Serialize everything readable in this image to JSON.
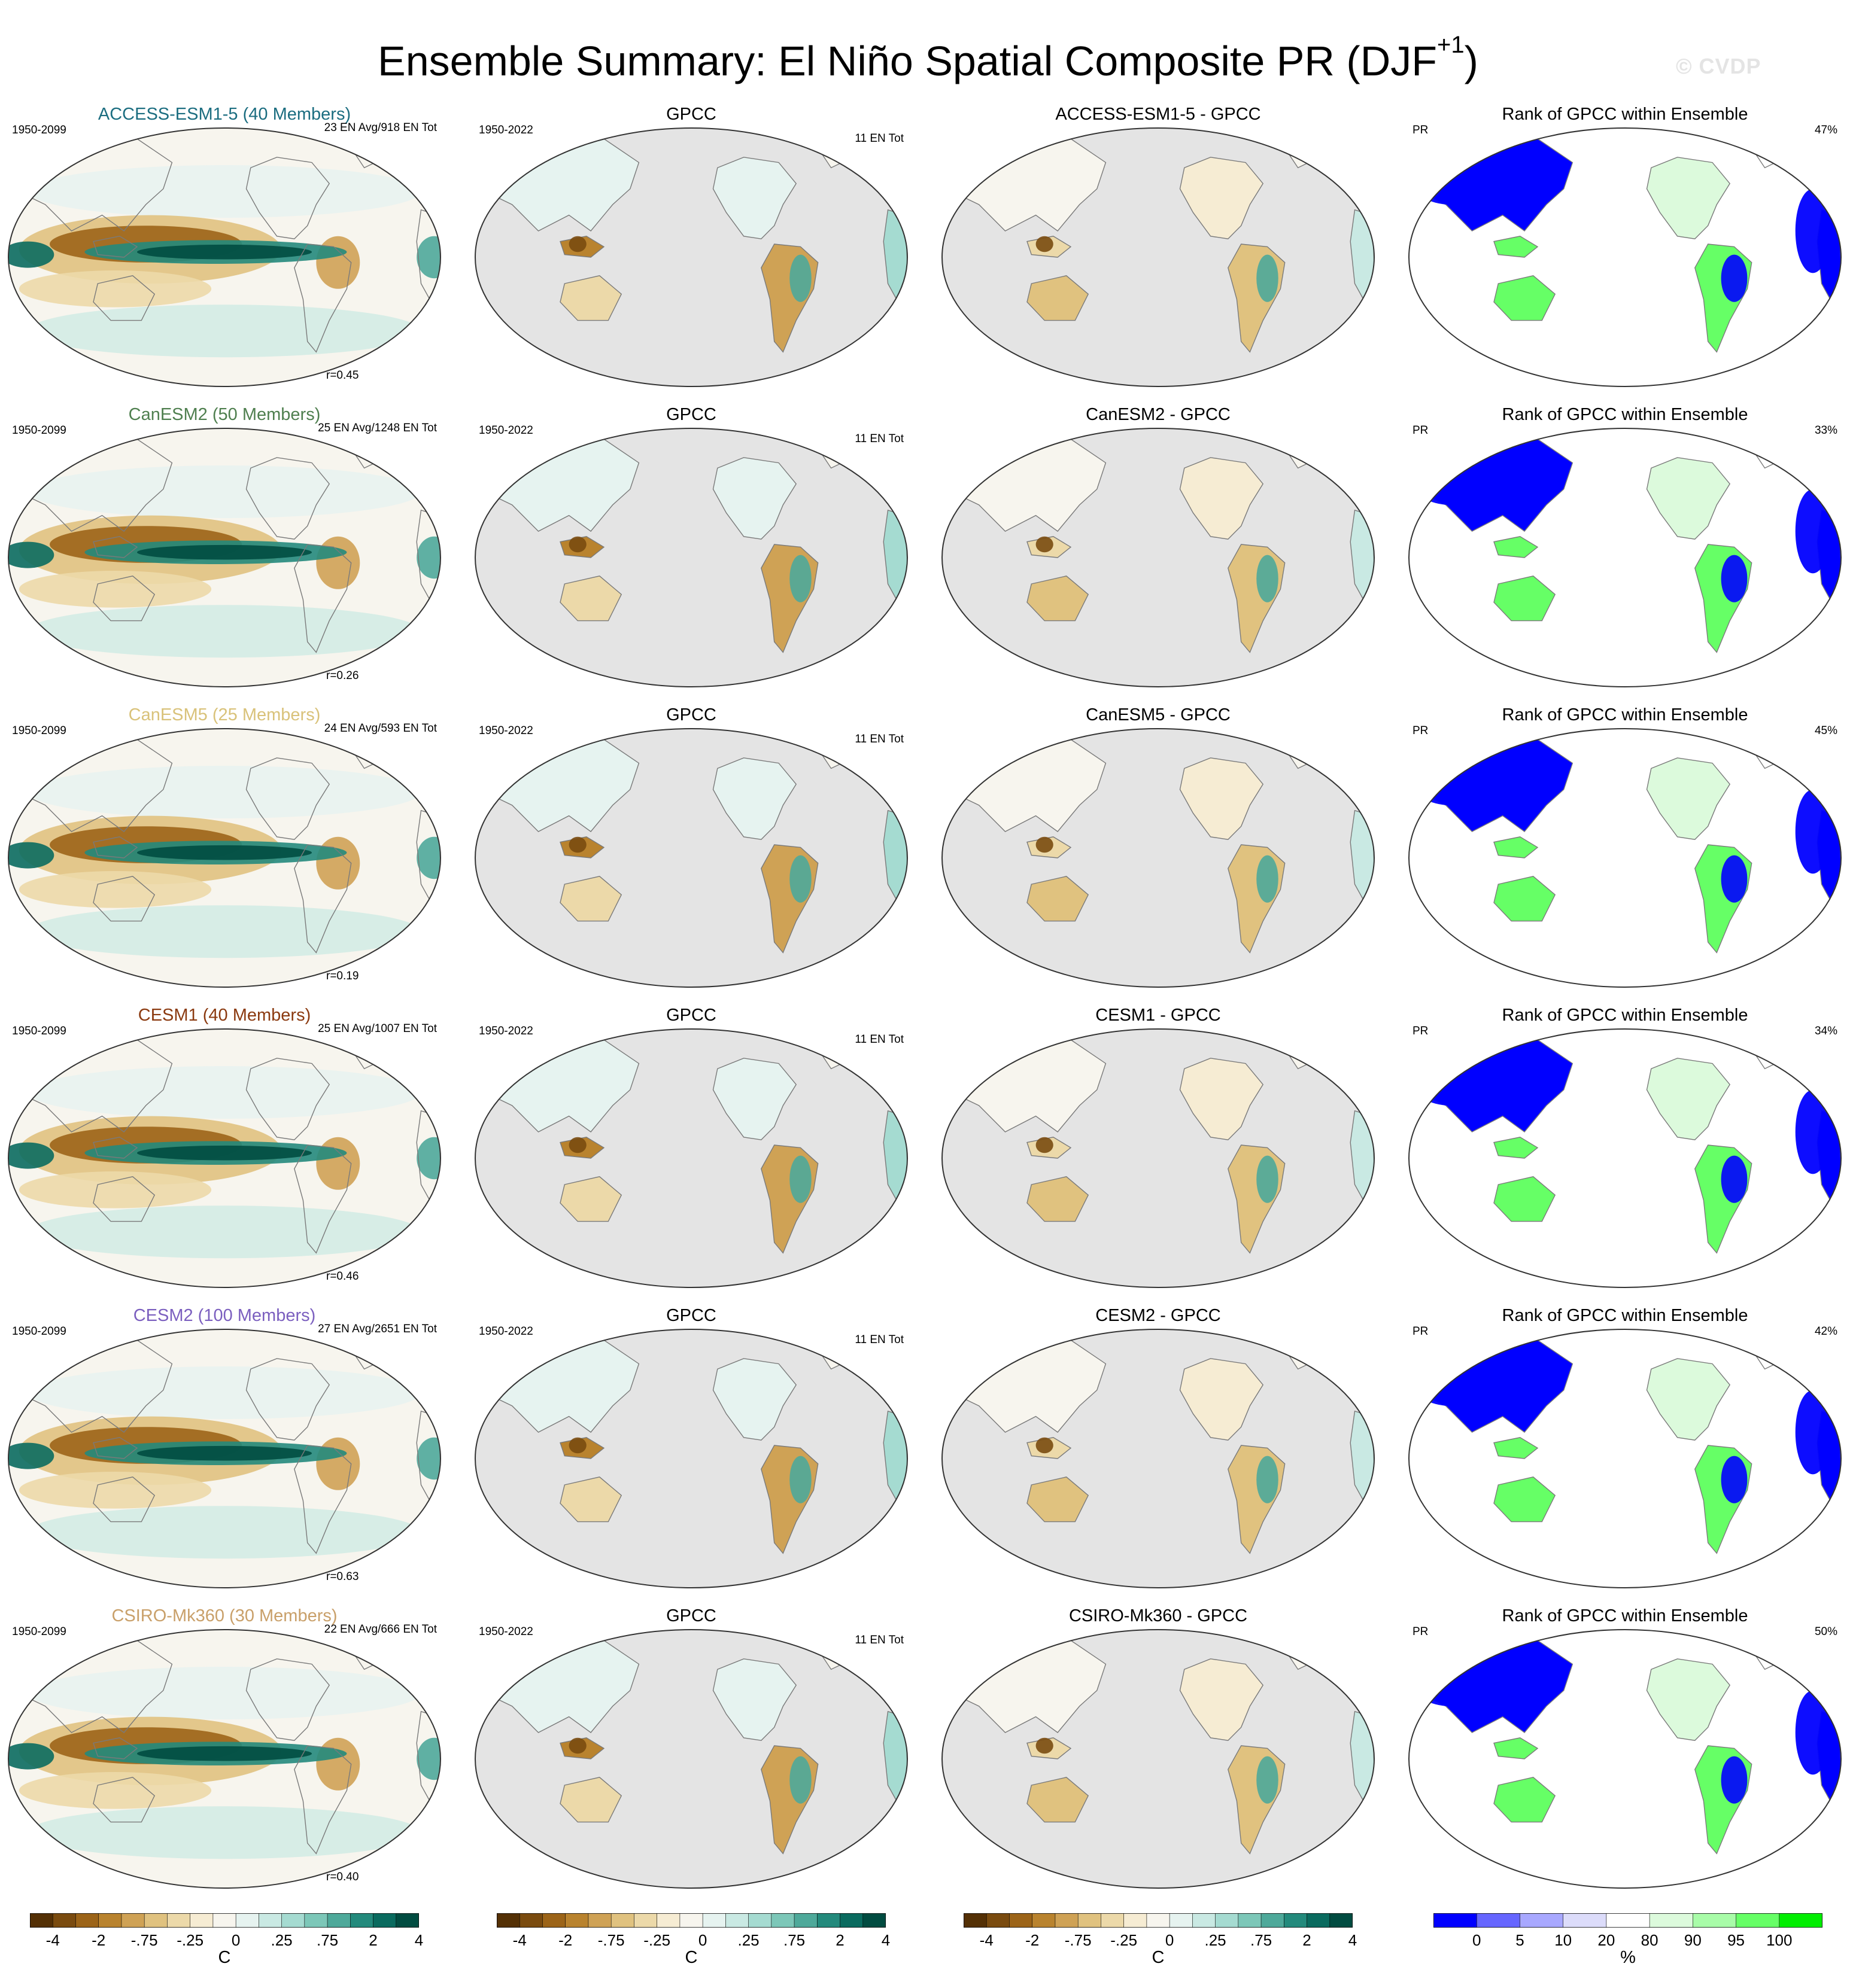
{
  "title": {
    "main": "Ensemble Summary: El Niño Spatial Composite PR (DJF",
    "superscript": "+1",
    "close": ")"
  },
  "watermark": "© CVDP",
  "colors": {
    "brown_teal": [
      "#543005",
      "#7a4b0f",
      "#9c6418",
      "#b9832e",
      "#cfa255",
      "#e0c27f",
      "#ecd9a9",
      "#f6ecd3",
      "#f7f5ee",
      "#e6f3f0",
      "#c9e9e3",
      "#a5dbd1",
      "#7cc7b8",
      "#4ea99a",
      "#238a7c",
      "#0a6b5f",
      "#014c41"
    ],
    "rank": [
      "#0000ff",
      "#6666ff",
      "#a8a8ff",
      "#dcdcfa",
      "#ffffff",
      "#dcfadc",
      "#a8fca8",
      "#66ff66",
      "#00ee00"
    ],
    "ocean_obs": "#e4e4e4"
  },
  "rows": [
    {
      "model": "ACCESS-ESM1-5 (40 Members)",
      "model_color": "#1b6d80",
      "period": "1950-2099",
      "ens": "23 EN Avg/918 EN Tot",
      "r": "r=0.45",
      "gpcc_title": "GPCC",
      "obs_period": "1950-2022",
      "obs_count": "11 EN Tot",
      "diff_title": "ACCESS-ESM1-5 - GPCC",
      "rank_title": "Rank of GPCC within Ensemble",
      "rank_var": "PR",
      "rank_pct": "47%"
    },
    {
      "model": "CanESM2 (50 Members)",
      "model_color": "#4f7f4f",
      "period": "1950-2099",
      "ens": "25 EN Avg/1248 EN Tot",
      "r": "r=0.26",
      "gpcc_title": "GPCC",
      "obs_period": "1950-2022",
      "obs_count": "11 EN Tot",
      "diff_title": "CanESM2 - GPCC",
      "rank_title": "Rank of GPCC within Ensemble",
      "rank_var": "PR",
      "rank_pct": "33%"
    },
    {
      "model": "CanESM5 (25 Members)",
      "model_color": "#d9c27a",
      "period": "1950-2099",
      "ens": "24 EN Avg/593 EN Tot",
      "r": "r=0.19",
      "gpcc_title": "GPCC",
      "obs_period": "1950-2022",
      "obs_count": "11 EN Tot",
      "diff_title": "CanESM5 - GPCC",
      "rank_title": "Rank of GPCC within Ensemble",
      "rank_var": "PR",
      "rank_pct": "45%"
    },
    {
      "model": "CESM1 (40 Members)",
      "model_color": "#8b3a10",
      "period": "1950-2099",
      "ens": "25 EN Avg/1007 EN Tot",
      "r": "r=0.46",
      "gpcc_title": "GPCC",
      "obs_period": "1950-2022",
      "obs_count": "11 EN Tot",
      "diff_title": "CESM1 - GPCC",
      "rank_title": "Rank of GPCC within Ensemble",
      "rank_var": "PR",
      "rank_pct": "34%"
    },
    {
      "model": "CESM2 (100 Members)",
      "model_color": "#7b5fbf",
      "period": "1950-2099",
      "ens": "27 EN Avg/2651 EN Tot",
      "r": "r=0.63",
      "gpcc_title": "GPCC",
      "obs_period": "1950-2022",
      "obs_count": "11 EN Tot",
      "diff_title": "CESM2 - GPCC",
      "rank_title": "Rank of GPCC within Ensemble",
      "rank_var": "PR",
      "rank_pct": "42%"
    },
    {
      "model": "CSIRO-Mk360 (30 Members)",
      "model_color": "#c9a06a",
      "period": "1950-2099",
      "ens": "22 EN Avg/666 EN Tot",
      "r": "r=0.40",
      "gpcc_title": "GPCC",
      "obs_period": "1950-2022",
      "obs_count": "11 EN Tot",
      "diff_title": "CSIRO-Mk360 - GPCC",
      "rank_title": "Rank of GPCC within Ensemble",
      "rank_var": "PR",
      "rank_pct": "50%"
    }
  ],
  "colorbars": [
    {
      "labels": [
        "-4",
        "-2",
        "-.75",
        "-.25",
        "0",
        ".25",
        ".75",
        "2",
        "4"
      ],
      "unit": "C"
    },
    {
      "labels": [
        "-4",
        "-2",
        "-.75",
        "-.25",
        "0",
        ".25",
        ".75",
        "2",
        "4"
      ],
      "unit": "C"
    },
    {
      "labels": [
        "-4",
        "-2",
        "-.75",
        "-.25",
        "0",
        ".25",
        ".75",
        "2",
        "4"
      ],
      "unit": "C"
    },
    {
      "labels": [
        "0",
        "5",
        "10",
        "20",
        "80",
        "90",
        "95",
        "100"
      ],
      "unit": "%"
    }
  ]
}
